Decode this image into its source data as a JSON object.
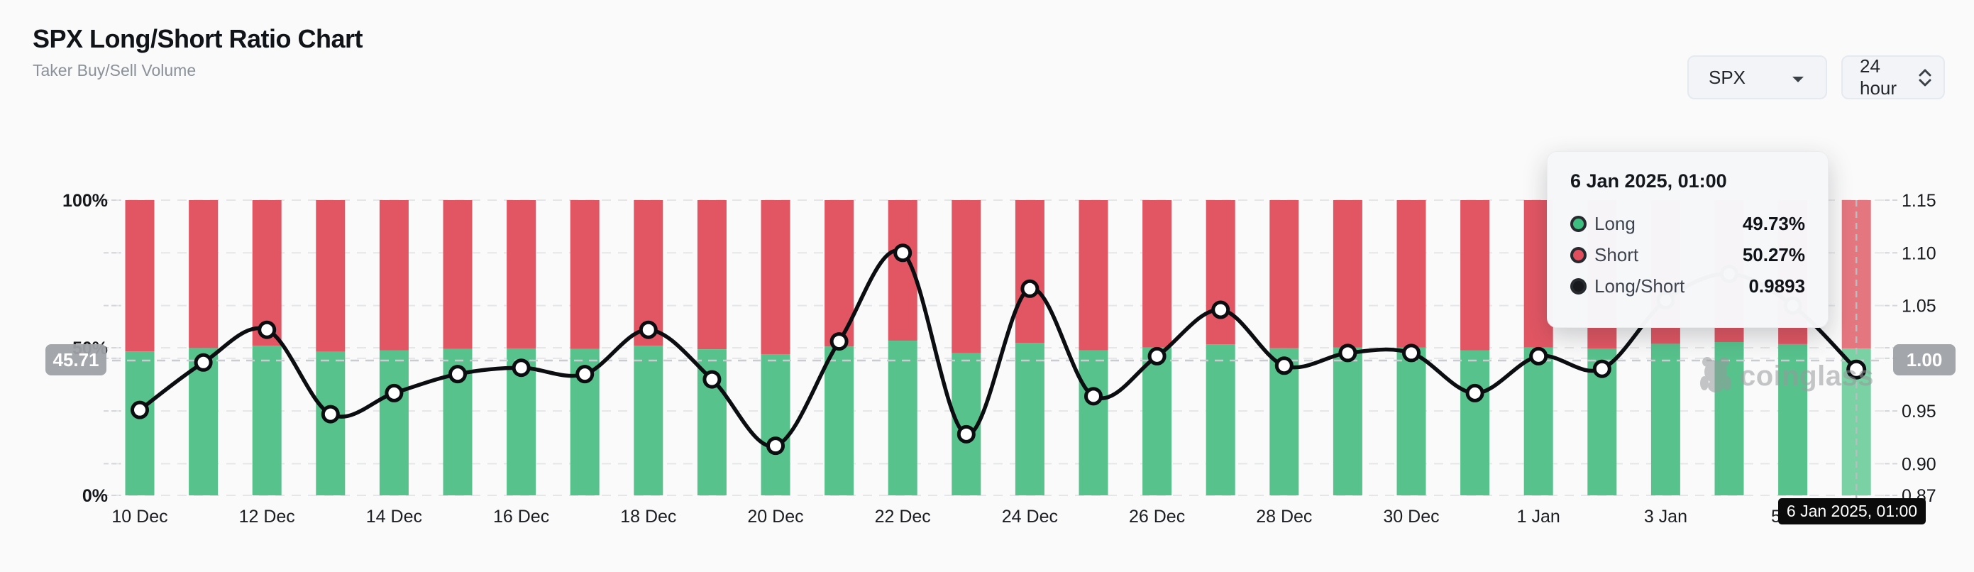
{
  "header": {
    "title": "SPX Long/Short Ratio Chart",
    "subtitle": "Taker Buy/Sell Volume"
  },
  "controls": {
    "symbol_select": {
      "value": "SPX"
    },
    "interval_select": {
      "value": "24 hour"
    }
  },
  "tooltip": {
    "title": "6 Jan 2025, 01:00",
    "rows": [
      {
        "label": "Long",
        "value": "49.73%",
        "color": "#3ebd80"
      },
      {
        "label": "Short",
        "value": "50.27%",
        "color": "#e14e5d"
      },
      {
        "label": "Long/Short",
        "value": "0.9893",
        "color": "#17191d"
      }
    ]
  },
  "crosshair": {
    "left_badge": "45.71",
    "right_badge": "1.00",
    "date_badge": "6 Jan 2025, 01:00"
  },
  "watermark": {
    "text": "coinglass"
  },
  "chart_data": {
    "type": "bar",
    "subtype": "stacked-percent bars with smoothed ratio line",
    "x": [
      "10 Dec",
      "11 Dec",
      "12 Dec",
      "13 Dec",
      "14 Dec",
      "15 Dec",
      "16 Dec",
      "17 Dec",
      "18 Dec",
      "19 Dec",
      "20 Dec",
      "21 Dec",
      "22 Dec",
      "23 Dec",
      "24 Dec",
      "25 Dec",
      "26 Dec",
      "27 Dec",
      "28 Dec",
      "29 Dec",
      "30 Dec",
      "31 Dec",
      "1 Jan",
      "2 Jan",
      "3 Jan",
      "4 Jan",
      "5 Jan",
      "6 Jan"
    ],
    "x_tick_labels": [
      "10 Dec",
      "12 Dec",
      "14 Dec",
      "16 Dec",
      "18 Dec",
      "20 Dec",
      "22 Dec",
      "24 Dec",
      "26 Dec",
      "28 Dec",
      "30 Dec",
      "1 Jan",
      "3 Jan",
      "5 Jan"
    ],
    "series": [
      {
        "name": "Long",
        "type": "bar",
        "stack": true,
        "color": "#57c28c",
        "values": [
          48.74,
          49.9,
          50.67,
          48.64,
          49.16,
          49.62,
          49.77,
          49.62,
          50.67,
          49.49,
          47.84,
          50.4,
          52.38,
          48.13,
          51.6,
          49.08,
          50.05,
          51.12,
          49.82,
          50.12,
          50.12,
          49.16,
          50.05,
          49.75,
          51.34,
          51.92,
          51.22,
          49.73
        ]
      },
      {
        "name": "Short",
        "type": "bar",
        "stack": true,
        "color": "#e25663",
        "values": [
          51.26,
          50.1,
          49.33,
          51.36,
          50.84,
          50.38,
          50.23,
          50.38,
          49.33,
          50.51,
          52.16,
          49.6,
          47.62,
          51.87,
          48.4,
          50.92,
          49.95,
          48.88,
          50.18,
          49.88,
          49.88,
          50.84,
          49.95,
          50.25,
          48.66,
          48.08,
          48.78,
          50.27
        ]
      },
      {
        "name": "Long/Short",
        "type": "line",
        "color": "#0b0d10",
        "values": [
          0.951,
          0.996,
          1.027,
          0.947,
          0.967,
          0.985,
          0.991,
          0.985,
          1.027,
          0.98,
          0.917,
          1.016,
          1.1,
          0.928,
          1.066,
          0.964,
          1.002,
          1.046,
          0.993,
          1.005,
          1.005,
          0.967,
          1.002,
          0.99,
          1.055,
          1.08,
          1.05,
          0.9893
        ]
      }
    ],
    "y_axis_left": {
      "ticks": [
        "100%",
        "50%",
        "0%"
      ],
      "range": [
        0,
        100
      ],
      "unit": "%"
    },
    "y_axis_right": {
      "ticks": [
        "1.15",
        "1.10",
        "1.05",
        "1.00",
        "0.95",
        "0.90",
        "0.87"
      ],
      "range": [
        0.87,
        1.15
      ]
    },
    "grid": "dashed horizontal gridlines",
    "legend_position": "none",
    "highlight_index": 27,
    "highlight_colors": {
      "long": "#7ad2a4",
      "short": "#e4767f"
    },
    "crosshair_values": {
      "y_left_pct": 45.71,
      "y_right_ratio": 1.0,
      "x_date": "6 Jan 2025, 01:00"
    }
  }
}
